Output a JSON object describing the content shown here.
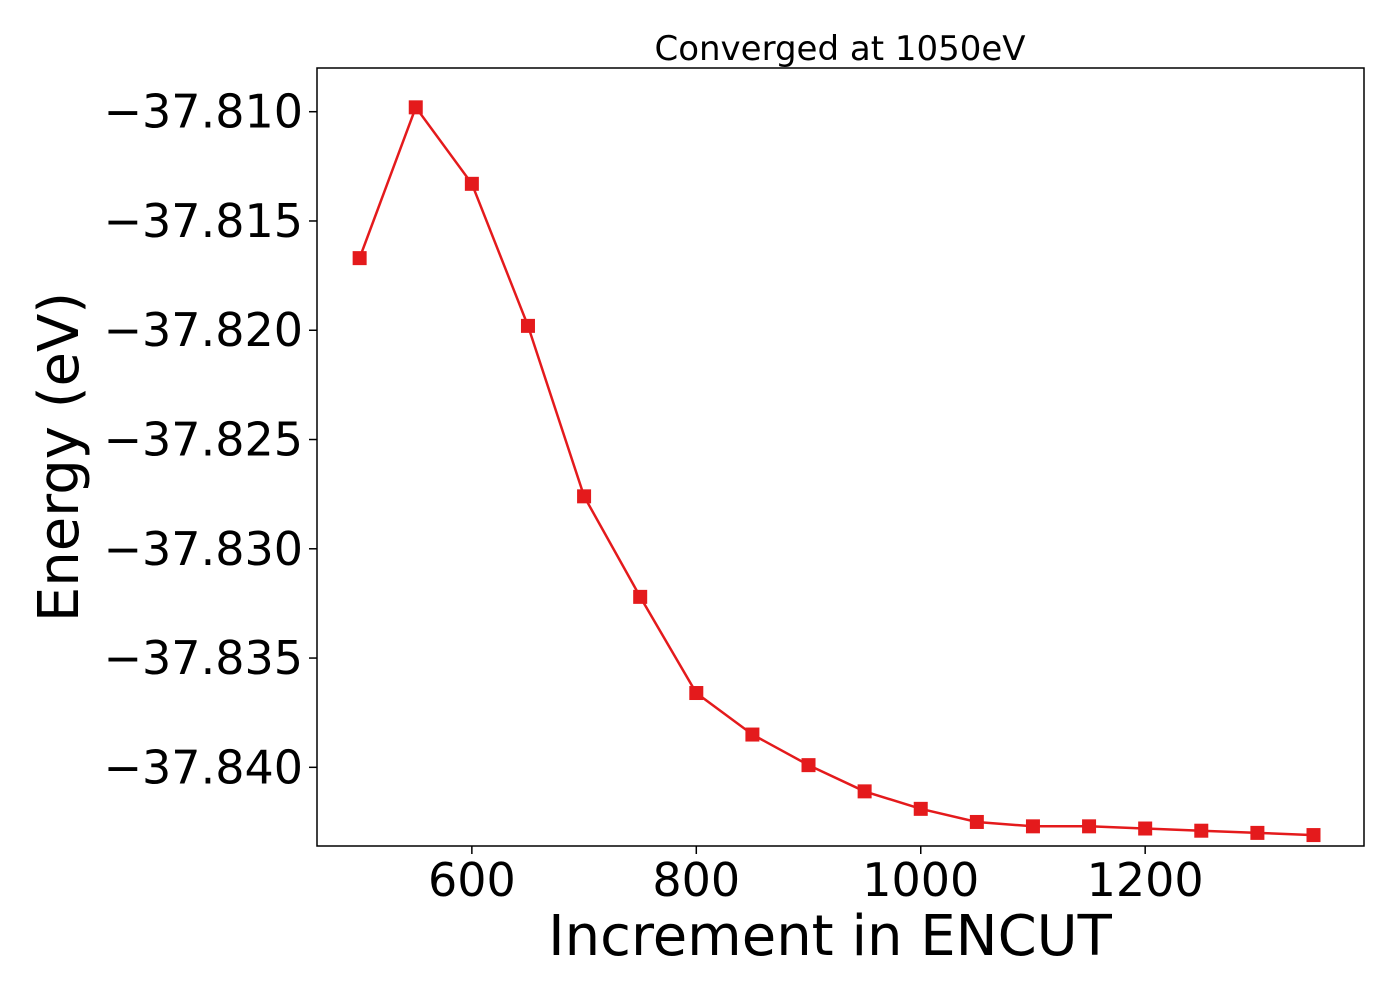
{
  "chart_data": {
    "type": "line",
    "title": "Converged at 1050eV",
    "xlabel": "Increment in ENCUT",
    "ylabel": "Energy (eV)",
    "xlim": [
      462,
      1395
    ],
    "ylim": [
      -37.8436,
      -37.808
    ],
    "x_ticks": [
      600,
      800,
      1000,
      1200
    ],
    "x_tick_labels": [
      "600",
      "800",
      "1000",
      "1200"
    ],
    "y_ticks": [
      -37.81,
      -37.815,
      -37.82,
      -37.825,
      -37.83,
      -37.835,
      -37.84
    ],
    "y_tick_labels": [
      "−37.810",
      "−37.815",
      "−37.820",
      "−37.825",
      "−37.830",
      "−37.835",
      "−37.840"
    ],
    "grid": false,
    "legend": "none",
    "series": [
      {
        "color": "#e41a1c",
        "marker": "square",
        "x": [
          500,
          550,
          600,
          650,
          700,
          750,
          800,
          850,
          900,
          950,
          1000,
          1050,
          1100,
          1150,
          1200,
          1250,
          1300,
          1350
        ],
        "y": [
          -37.8167,
          -37.8098,
          -37.8133,
          -37.8198,
          -37.8276,
          -37.8322,
          -37.8366,
          -37.8385,
          -37.8399,
          -37.8411,
          -37.8419,
          -37.8425,
          -37.8427,
          -37.8427,
          -37.8428,
          -37.8429,
          -37.843,
          -37.8431
        ]
      }
    ]
  }
}
